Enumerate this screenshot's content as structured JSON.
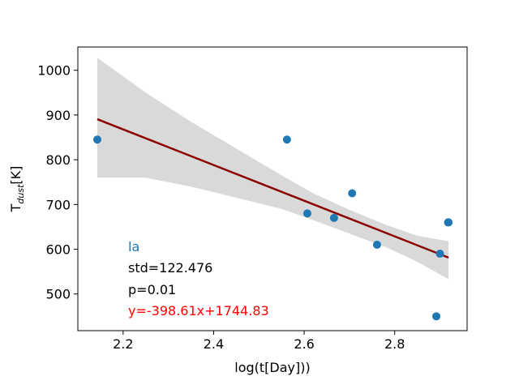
{
  "chart_data": {
    "type": "scatter",
    "xlabel": "log(t[Day]))",
    "ylabel_main": "T",
    "ylabel_sub": "dust",
    "ylabel_tail": "[K]",
    "xlim": [
      2.1,
      2.96
    ],
    "ylim": [
      418,
      1052
    ],
    "xticks": [
      2.2,
      2.4,
      2.6,
      2.8
    ],
    "xtick_labels": [
      "2.2",
      "2.4",
      "2.6",
      "2.8"
    ],
    "yticks": [
      500,
      600,
      700,
      800,
      900,
      1000
    ],
    "ytick_labels": [
      "500",
      "600",
      "700",
      "800",
      "900",
      "1000"
    ],
    "points": [
      {
        "x": 2.143,
        "y": 845
      },
      {
        "x": 2.562,
        "y": 845
      },
      {
        "x": 2.607,
        "y": 680
      },
      {
        "x": 2.666,
        "y": 670
      },
      {
        "x": 2.706,
        "y": 725
      },
      {
        "x": 2.761,
        "y": 610
      },
      {
        "x": 2.892,
        "y": 450
      },
      {
        "x": 2.9,
        "y": 590
      },
      {
        "x": 2.918,
        "y": 660
      },
      {
        "x": 2.919,
        "y": 660
      }
    ],
    "fit": {
      "slope": -398.61,
      "intercept": 1744.83,
      "x_range": [
        2.143,
        2.919
      ]
    },
    "confidence_band": [
      {
        "x": 2.143,
        "lower": 760,
        "upper": 1028
      },
      {
        "x": 2.25,
        "lower": 760,
        "upper": 950
      },
      {
        "x": 2.35,
        "lower": 740,
        "upper": 885
      },
      {
        "x": 2.45,
        "lower": 715,
        "upper": 825
      },
      {
        "x": 2.55,
        "lower": 690,
        "upper": 765
      },
      {
        "x": 2.62,
        "lower": 665,
        "upper": 725
      },
      {
        "x": 2.7,
        "lower": 635,
        "upper": 688
      },
      {
        "x": 2.78,
        "lower": 605,
        "upper": 655
      },
      {
        "x": 2.85,
        "lower": 572,
        "upper": 630
      },
      {
        "x": 2.919,
        "lower": 533,
        "upper": 618
      }
    ],
    "annotations": {
      "label": "la",
      "std": "std=122.476",
      "p": "p=0.01",
      "equation": "y=-398.61x+1744.83"
    },
    "colors": {
      "points": "#1f77b4",
      "label": "#1f77b4",
      "fit": "#8b0000",
      "equation": "#ff0000",
      "band": "#d9d9d9"
    }
  }
}
